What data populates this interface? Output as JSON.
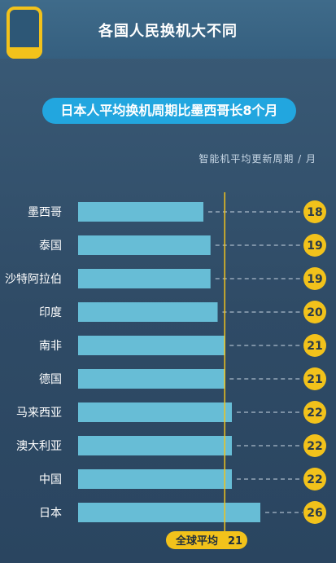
{
  "header": {
    "title": "各国人民换机大不同"
  },
  "subtitle": "日本人平均换机周期比墨西哥长8个月",
  "unit_label": "智能机平均更新周期 / 月",
  "average": {
    "label": "全球平均",
    "value": 21
  },
  "colors": {
    "bar": "#67bdd6",
    "badge": "#f2c21b",
    "avg_line": "#f2c21b",
    "subtitle_bg": "#22a6df"
  },
  "chart_data": {
    "type": "bar",
    "orientation": "horizontal",
    "categories": [
      "墨西哥",
      "泰国",
      "沙特阿拉伯",
      "印度",
      "南非",
      "德国",
      "马来西亚",
      "澳大利亚",
      "中国",
      "日本"
    ],
    "values": [
      18,
      19,
      19,
      20,
      21,
      21,
      22,
      22,
      22,
      26
    ],
    "title": "各国人民换机大不同",
    "subtitle": "日本人平均换机周期比墨西哥长8个月",
    "xlabel": "智能机平均更新周期 / 月",
    "reference_line": {
      "label": "全球平均",
      "value": 21
    },
    "grid": false
  }
}
